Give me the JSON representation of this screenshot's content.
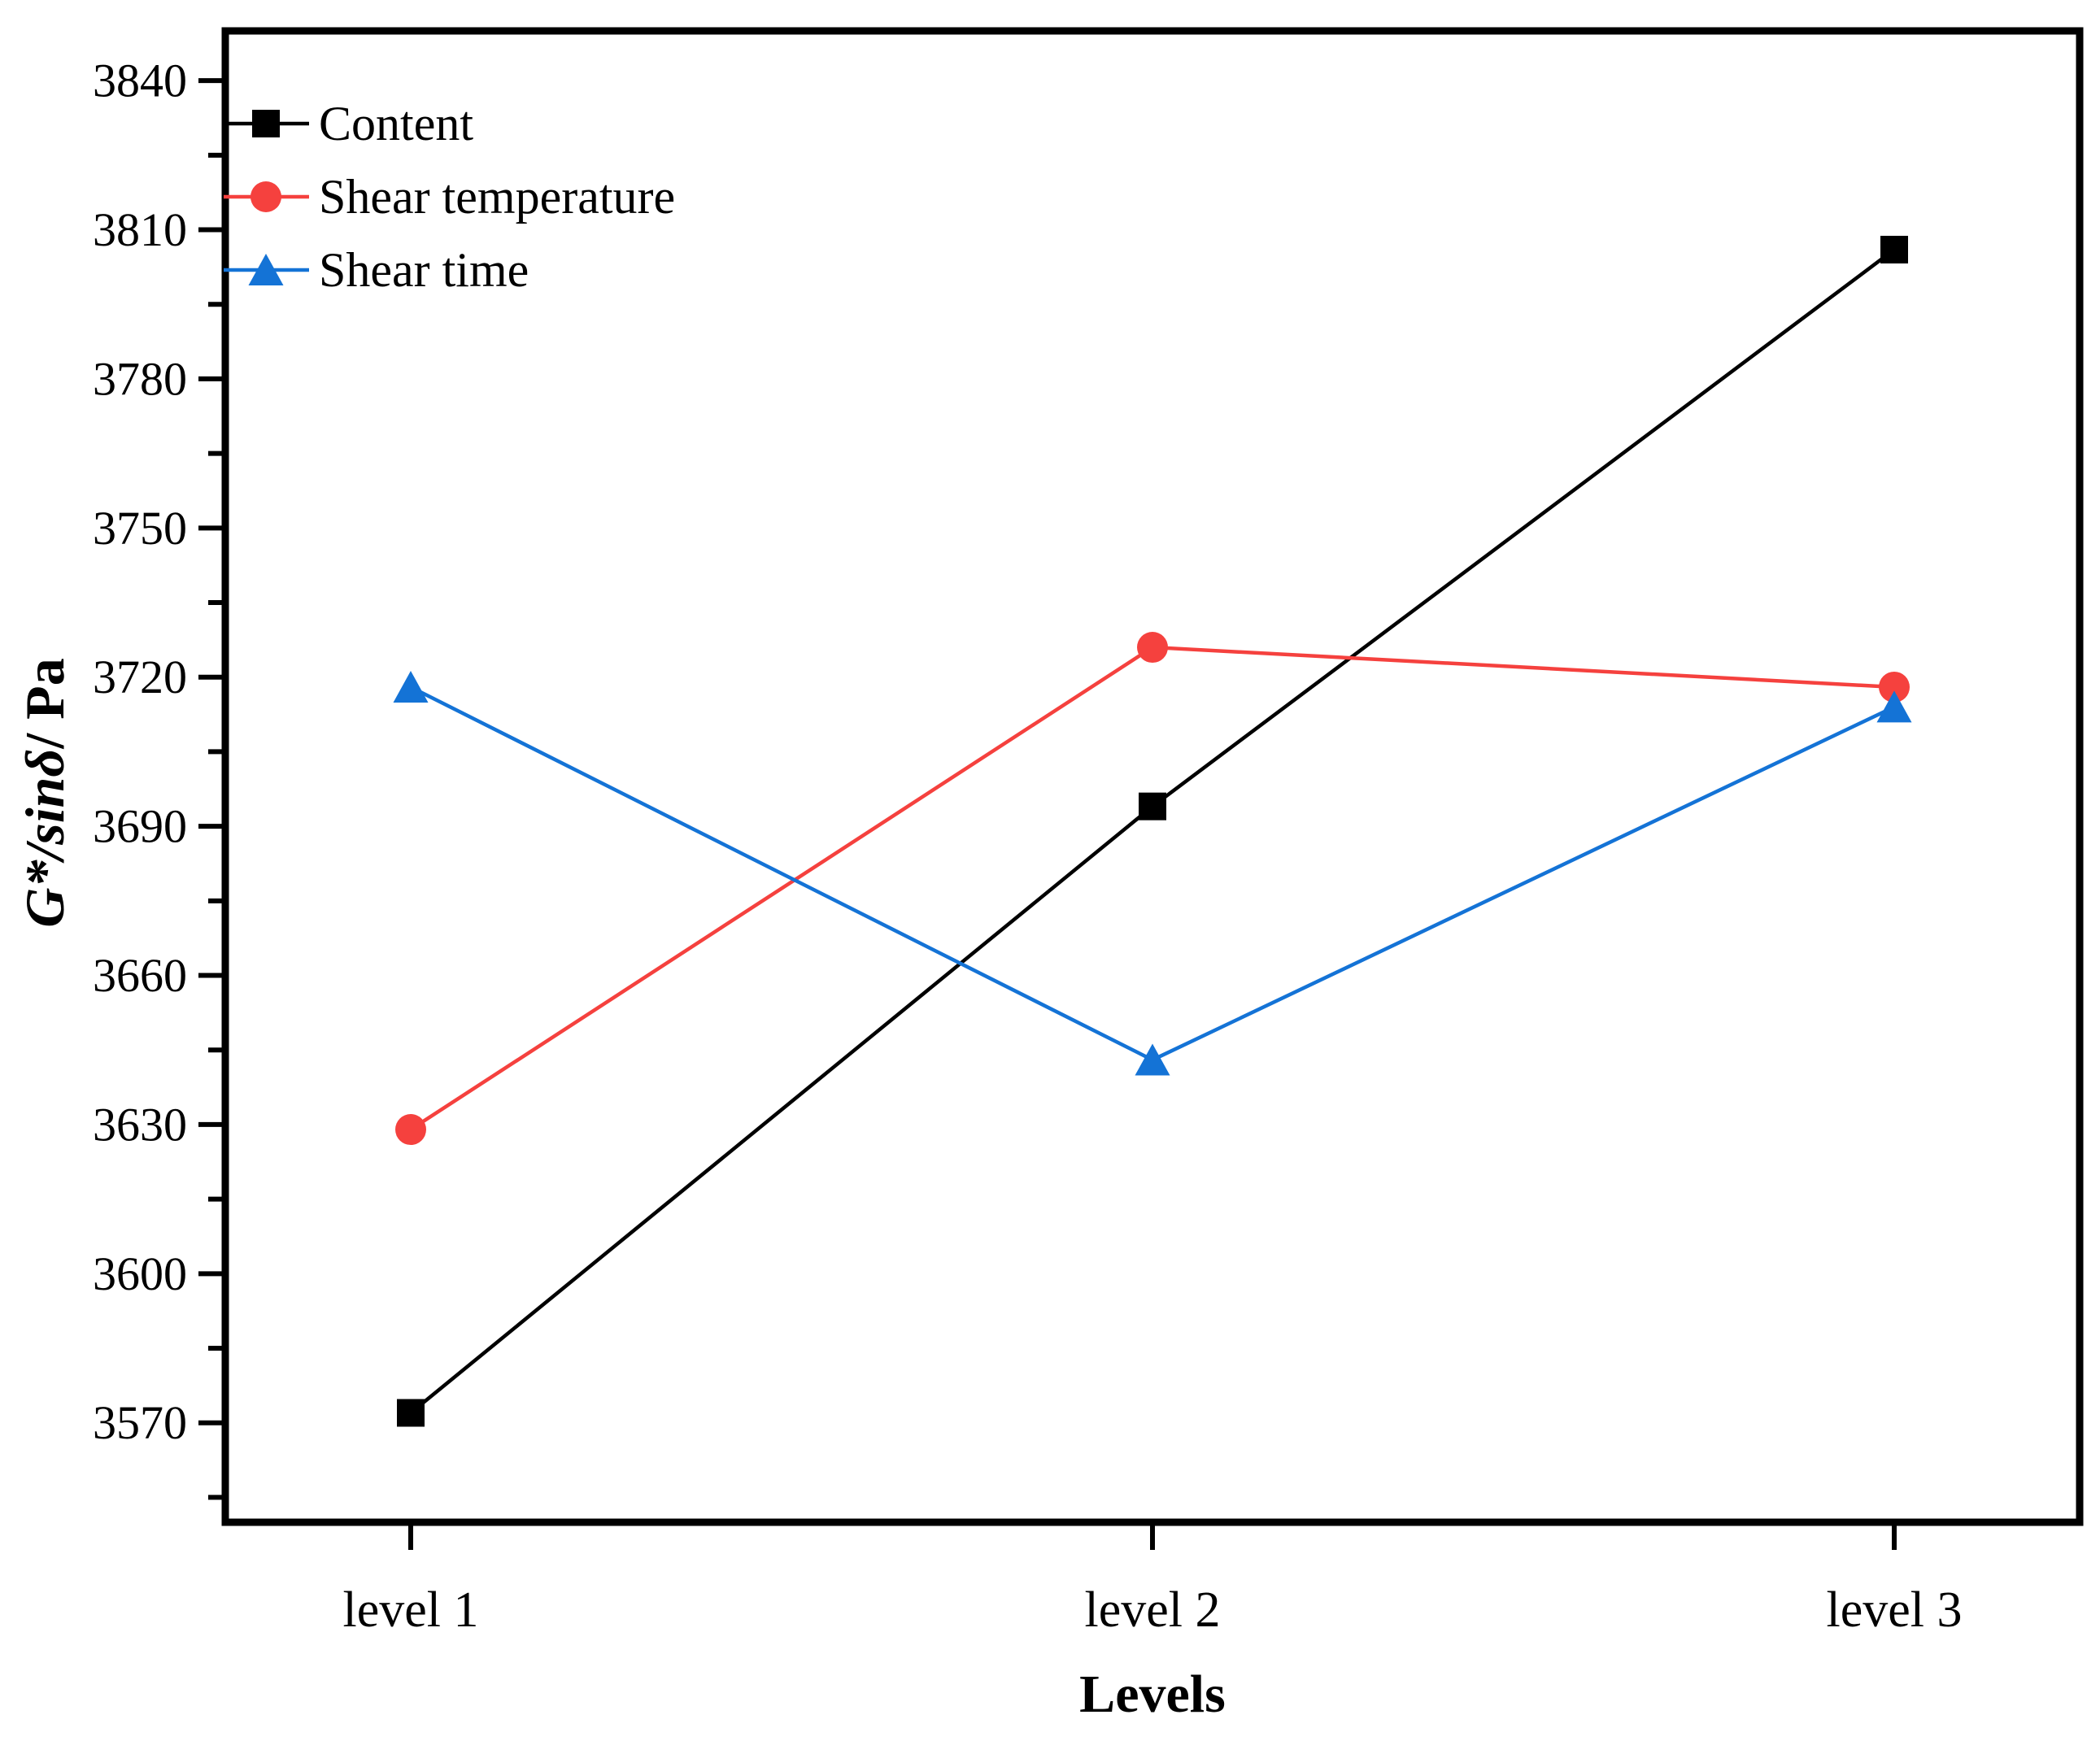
{
  "chart_data": {
    "type": "line",
    "title": "",
    "xlabel": "Levels",
    "ylabel_italic": "G*/sinδ",
    "ylabel_rest": "/ Pa",
    "categories": [
      "level 1",
      "level 2",
      "level 3"
    ],
    "series": [
      {
        "name": "Content",
        "color": "#000000",
        "marker": "square",
        "values": [
          3572,
          3694,
          3806
        ]
      },
      {
        "name": "Shear temperature",
        "color": "#F5413E",
        "marker": "circle",
        "values": [
          3629,
          3726,
          3718
        ]
      },
      {
        "name": "Shear time",
        "color": "#1473D6",
        "marker": "triangle",
        "values": [
          3718,
          3643,
          3714
        ]
      }
    ],
    "ylim": [
      3550,
      3850
    ],
    "ytick_labels": [
      "3570",
      "3600",
      "3630",
      "3660",
      "3690",
      "3720",
      "3750",
      "3780",
      "3810",
      "3840"
    ],
    "ytick_minor_step": 15,
    "legend_position": "top-left",
    "grid": false,
    "axis_color": "#000000",
    "background_color": "#FFFFFF"
  }
}
